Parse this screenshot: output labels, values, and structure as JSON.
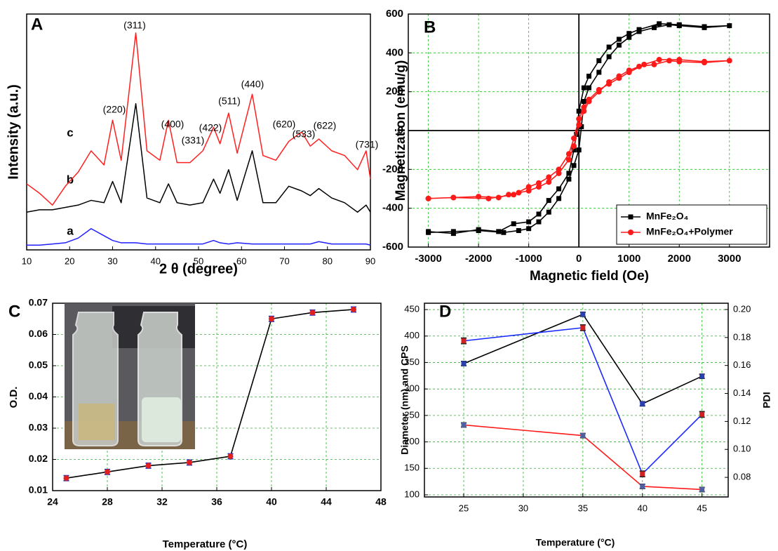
{
  "chart_data": [
    {
      "type": "line",
      "title": "A",
      "x_label": "2 θ (degree)",
      "y_label": "Intensity (a.u.)",
      "grid": false,
      "x": [
        10,
        13,
        16,
        19,
        22,
        25,
        28,
        30,
        32,
        35.4,
        38,
        41,
        43,
        45,
        48,
        51,
        53.5,
        55,
        57,
        59,
        62.5,
        65,
        68,
        71,
        74,
        76,
        78,
        81,
        84,
        87,
        89,
        90
      ],
      "series": [
        {
          "name": "a",
          "color": "#1f1fff",
          "values": [
            2,
            2,
            2.5,
            3,
            5,
            9,
            6,
            4,
            3,
            3,
            2.5,
            2.5,
            2.5,
            2.5,
            2.5,
            2.5,
            4,
            3,
            2.5,
            3,
            2.5,
            2.5,
            2.5,
            2.5,
            2.5,
            2.5,
            3.5,
            2.5,
            2.5,
            2.5,
            2.5,
            2
          ]
        },
        {
          "name": "b",
          "color": "#000000",
          "values": [
            16,
            17,
            17,
            18,
            19,
            21,
            20,
            29,
            20,
            62,
            22,
            20,
            28,
            20,
            19,
            20,
            30,
            24,
            34,
            21,
            42,
            20,
            20,
            27,
            25,
            23,
            26,
            22,
            20,
            16,
            19,
            16
          ]
        },
        {
          "name": "c",
          "color": "#ff2020",
          "values": [
            28,
            24,
            19,
            27,
            33,
            42,
            36,
            55,
            38,
            92,
            42,
            38,
            55,
            37,
            37,
            42,
            52,
            45,
            58,
            41,
            66,
            40,
            38,
            46,
            50,
            44,
            47,
            42,
            40,
            34,
            42,
            30
          ]
        }
      ],
      "xlim": [
        10,
        90
      ],
      "xticks": [
        10,
        20,
        30,
        40,
        50,
        60,
        70,
        80,
        90
      ],
      "ylim": [
        0,
        100
      ],
      "annotations": [
        "(311)",
        "(220)",
        "(400)",
        "(331)",
        "(422)",
        "(511)",
        "(440)",
        "(620)",
        "(533)",
        "(622)",
        "(731)"
      ]
    },
    {
      "type": "line",
      "title": "B",
      "x_label": "Magnetic field (Oe)",
      "y_label": "Magnetization (emu/g)",
      "grid": true,
      "zero_lines": true,
      "legend": "lower right",
      "series": [
        {
          "name": "MnFe₂O₄",
          "color": "#000000",
          "marker": "square",
          "x": [
            -3000,
            -2500,
            -2000,
            -1500,
            -1200,
            -1000,
            -800,
            -600,
            -400,
            -200,
            -100,
            0,
            50,
            100,
            200,
            400,
            600,
            800,
            1000,
            1200,
            1500,
            1800,
            2000,
            2500,
            3000,
            2500,
            2000,
            1600,
            1200,
            1000,
            800,
            600,
            400,
            200,
            100,
            0,
            -50,
            -100,
            -200,
            -400,
            -600,
            -800,
            -1000,
            -1300,
            -1600,
            -2000,
            -2500,
            -3000
          ],
          "values": [
            -525,
            -520,
            -515,
            -525,
            -515,
            -505,
            -470,
            -420,
            -350,
            -250,
            -180,
            -100,
            20,
            150,
            220,
            300,
            380,
            440,
            480,
            510,
            530,
            545,
            540,
            530,
            540,
            535,
            545,
            550,
            520,
            500,
            470,
            430,
            360,
            280,
            220,
            100,
            -20,
            -100,
            -220,
            -300,
            -360,
            -430,
            -470,
            -480,
            -520,
            -510,
            -530,
            -520
          ]
        },
        {
          "name": "MnFe₂O₄+Polymer",
          "color": "#ff1a1a",
          "marker": "circle",
          "x": [
            -3000,
            -2500,
            -2000,
            -1600,
            -1400,
            -1200,
            -1000,
            -800,
            -600,
            -400,
            -200,
            -100,
            0,
            100,
            200,
            400,
            600,
            800,
            1000,
            1200,
            1500,
            1800,
            2000,
            2500,
            3000,
            2500,
            2000,
            1600,
            1300,
            1000,
            800,
            600,
            400,
            200,
            100,
            0,
            -100,
            -200,
            -400,
            -600,
            -800,
            -1000,
            -1300,
            -1800,
            -2500,
            -3000
          ],
          "values": [
            -350,
            -345,
            -340,
            -345,
            -330,
            -320,
            -310,
            -290,
            -265,
            -220,
            -150,
            -80,
            30,
            100,
            150,
            200,
            250,
            280,
            310,
            330,
            340,
            360,
            355,
            350,
            360,
            355,
            365,
            365,
            340,
            300,
            270,
            240,
            210,
            160,
            120,
            60,
            -40,
            -120,
            -200,
            -240,
            -270,
            -290,
            -330,
            -350,
            -345,
            -350
          ]
        }
      ],
      "xlim": [
        -3400,
        3800
      ],
      "xticks": [
        -3000,
        -2000,
        -1000,
        0,
        1000,
        2000,
        3000
      ],
      "ylim": [
        -600,
        600
      ],
      "yticks": [
        -600,
        -400,
        -200,
        0,
        200,
        400,
        600
      ]
    },
    {
      "type": "line",
      "title": "C",
      "x_label": "Temperature (°C)",
      "y_label": "O.D.",
      "grid": true,
      "x": [
        25,
        28,
        31,
        34,
        37,
        40,
        43,
        46
      ],
      "series": [
        {
          "color": "#000000",
          "marker": "circle",
          "marker_color": "#e02020",
          "error_color": "#2030c0",
          "values": [
            0.014,
            0.016,
            0.018,
            0.019,
            0.021,
            0.065,
            0.067,
            0.068
          ],
          "errors": [
            0.0008,
            0.0008,
            0.0008,
            0.0008,
            0.0008,
            0.0008,
            0.0008,
            0.0008
          ]
        }
      ],
      "xlim": [
        24,
        48
      ],
      "xticks": [
        24,
        28,
        32,
        36,
        40,
        44,
        48
      ],
      "ylim": [
        0.01,
        0.07
      ],
      "yticks": [
        0.01,
        0.02,
        0.03,
        0.04,
        0.05,
        0.06,
        0.07
      ]
    },
    {
      "type": "line",
      "title": "D",
      "x_label": "Temperature (°C)",
      "y_label": "Diameter (nm) and CPS",
      "y2_label": "PDI",
      "grid": true,
      "x": [
        25,
        35,
        40,
        45
      ],
      "series": [
        {
          "color": "#000000",
          "marker": "square",
          "marker_color": "#2a3fb0",
          "values": [
            348,
            441,
            272,
            324
          ],
          "errors": [
            4,
            4,
            4,
            4
          ]
        },
        {
          "color": "#ff1a1a",
          "marker": "square",
          "marker_color": "#5060a0",
          "values": [
            232,
            212,
            116,
            110
          ],
          "errors": [
            4,
            4,
            4,
            4
          ]
        },
        {
          "color": "#1a2aff",
          "marker": "square",
          "marker_color": "#d02020",
          "axis": "y2",
          "values": [
            0.1776,
            0.187,
            0.0825,
            0.125
          ],
          "errors": [
            0.002,
            0.002,
            0.002,
            0.002
          ]
        }
      ],
      "xlim": [
        21.7,
        47.2
      ],
      "xticks": [
        25,
        30,
        35,
        40,
        45
      ],
      "ylim": [
        96,
        462
      ],
      "yticks": [
        100,
        150,
        200,
        250,
        300,
        350,
        400,
        450
      ],
      "y2lim": [
        0.066,
        0.2045
      ],
      "y2ticks": [
        0.08,
        {
          "value": 0.1,
          "label": "0.10"
        },
        0.12,
        0.14,
        0.16,
        0.18,
        {
          "value": 0.2,
          "label": "0.20"
        }
      ]
    }
  ]
}
